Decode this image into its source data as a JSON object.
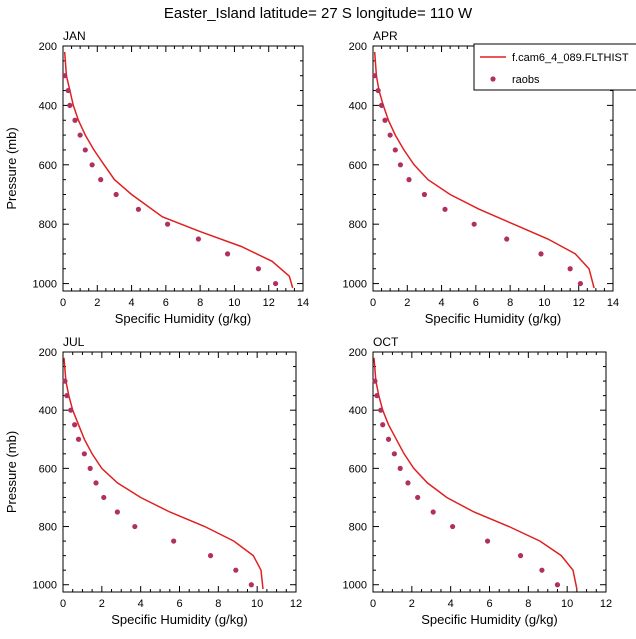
{
  "figure": {
    "title": "Easter_Island  latitude= 27 S longitude= 110 W"
  },
  "legend": {
    "model_label": "f.cam6_4_089.FLTHIST",
    "obs_label": "raobs"
  },
  "colors": {
    "model_line": "#e02020",
    "obs_marker": "#b03060"
  },
  "chart_data": [
    {
      "type": "line",
      "title": "JAN",
      "xlabel": "Specific Humidity (g/kg)",
      "ylabel": "Pressure (mb)",
      "xlim": [
        0,
        14
      ],
      "xticks": [
        0,
        2,
        4,
        6,
        8,
        10,
        12,
        14
      ],
      "ylim": [
        1025,
        200
      ],
      "yticks": [
        200,
        400,
        600,
        800,
        1000
      ],
      "series": [
        {
          "name": "f.cam6_4_089.FLTHIST",
          "style": "line",
          "q": [
            0.1,
            0.2,
            0.4,
            0.6,
            0.9,
            1.3,
            1.8,
            2.4,
            3.0,
            4.0,
            5.8,
            8.0,
            10.4,
            12.2,
            13.2,
            13.4
          ],
          "p": [
            220,
            300,
            350,
            400,
            450,
            500,
            550,
            600,
            650,
            700,
            775,
            825,
            875,
            925,
            975,
            1015
          ]
        },
        {
          "name": "raobs",
          "style": "marker",
          "q": [
            0.1,
            0.3,
            0.4,
            0.7,
            1.0,
            1.3,
            1.7,
            2.2,
            3.1,
            4.4,
            6.1,
            7.9,
            9.6,
            11.4,
            12.4
          ],
          "p": [
            300,
            350,
            400,
            450,
            500,
            550,
            600,
            650,
            700,
            750,
            800,
            850,
            900,
            950,
            1000
          ]
        }
      ]
    },
    {
      "type": "line",
      "title": "APR",
      "xlabel": "Specific Humidity (g/kg)",
      "ylabel": "",
      "xlim": [
        0,
        14
      ],
      "xticks": [
        0,
        2,
        4,
        6,
        8,
        10,
        12,
        14
      ],
      "ylim": [
        1025,
        200
      ],
      "yticks": [
        200,
        400,
        600,
        800,
        1000
      ],
      "series": [
        {
          "name": "f.cam6_4_089.FLTHIST",
          "style": "line",
          "q": [
            0.1,
            0.2,
            0.35,
            0.6,
            0.9,
            1.3,
            1.8,
            2.4,
            3.2,
            4.5,
            6.2,
            8.2,
            10.2,
            11.8,
            12.6,
            12.9
          ],
          "p": [
            220,
            300,
            350,
            400,
            450,
            500,
            550,
            600,
            650,
            700,
            750,
            800,
            850,
            900,
            950,
            1015
          ]
        },
        {
          "name": "raobs",
          "style": "marker",
          "q": [
            0.1,
            0.3,
            0.5,
            0.7,
            1.0,
            1.3,
            1.6,
            2.1,
            3.0,
            4.2,
            5.9,
            7.8,
            9.8,
            11.5,
            12.1
          ],
          "p": [
            300,
            350,
            400,
            450,
            500,
            550,
            600,
            650,
            700,
            750,
            800,
            850,
            900,
            950,
            1000
          ]
        }
      ]
    },
    {
      "type": "line",
      "title": "JUL",
      "xlabel": "Specific Humidity (g/kg)",
      "ylabel": "Pressure (mb)",
      "xlim": [
        0,
        12
      ],
      "xticks": [
        0,
        2,
        4,
        6,
        8,
        10,
        12
      ],
      "ylim": [
        1025,
        200
      ],
      "yticks": [
        200,
        400,
        600,
        800,
        1000
      ],
      "series": [
        {
          "name": "f.cam6_4_089.FLTHIST",
          "style": "line",
          "q": [
            0.05,
            0.15,
            0.3,
            0.5,
            0.8,
            1.1,
            1.5,
            2.0,
            2.8,
            4.0,
            5.5,
            7.3,
            8.8,
            9.8,
            10.2,
            10.3
          ],
          "p": [
            220,
            300,
            350,
            400,
            450,
            500,
            550,
            600,
            650,
            700,
            750,
            800,
            850,
            900,
            950,
            1015
          ]
        },
        {
          "name": "raobs",
          "style": "marker",
          "q": [
            0.1,
            0.2,
            0.4,
            0.6,
            0.8,
            1.1,
            1.4,
            1.7,
            2.1,
            2.8,
            3.7,
            5.7,
            7.6,
            8.9,
            9.7
          ],
          "p": [
            300,
            350,
            400,
            450,
            500,
            550,
            600,
            650,
            700,
            750,
            800,
            850,
            900,
            950,
            1000
          ]
        }
      ]
    },
    {
      "type": "line",
      "title": "OCT",
      "xlabel": "Specific Humidity (g/kg)",
      "ylabel": "",
      "xlim": [
        0,
        12
      ],
      "xticks": [
        0,
        2,
        4,
        6,
        8,
        10,
        12
      ],
      "ylim": [
        1025,
        200
      ],
      "yticks": [
        200,
        400,
        600,
        800,
        1000
      ],
      "series": [
        {
          "name": "f.cam6_4_089.FLTHIST",
          "style": "line",
          "q": [
            0.05,
            0.15,
            0.3,
            0.5,
            0.8,
            1.2,
            1.6,
            2.1,
            2.8,
            3.8,
            5.2,
            7.0,
            8.6,
            9.7,
            10.3,
            10.5
          ],
          "p": [
            220,
            300,
            350,
            400,
            450,
            500,
            550,
            600,
            650,
            700,
            750,
            800,
            850,
            900,
            950,
            1015
          ]
        },
        {
          "name": "raobs",
          "style": "marker",
          "q": [
            0.1,
            0.2,
            0.4,
            0.5,
            0.8,
            1.1,
            1.4,
            1.8,
            2.3,
            3.1,
            4.1,
            5.9,
            7.6,
            8.7,
            9.5
          ],
          "p": [
            300,
            350,
            400,
            450,
            500,
            550,
            600,
            650,
            700,
            750,
            800,
            850,
            900,
            950,
            1000
          ]
        }
      ]
    }
  ]
}
